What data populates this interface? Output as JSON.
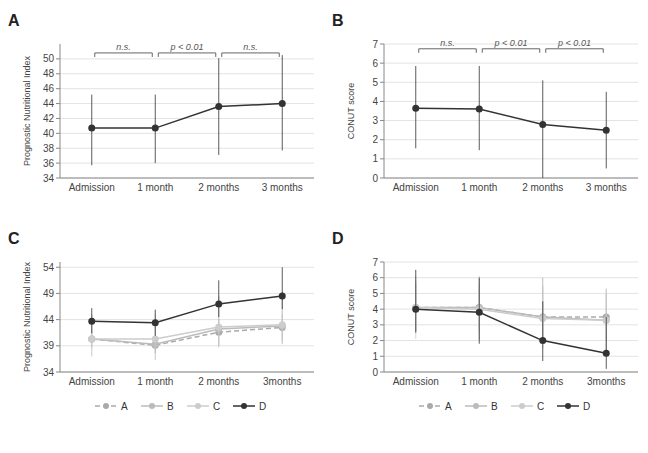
{
  "chart_data": [
    {
      "type": "line",
      "title": "A",
      "categories": [
        "Admission",
        "1 month",
        "2 months",
        "3 months"
      ],
      "ylabel": "Prognostic Nutritional Index",
      "ylim": [
        34,
        52
      ],
      "yticks": [
        34,
        36,
        38,
        40,
        42,
        44,
        46,
        48,
        50
      ],
      "grid": true,
      "series": [
        {
          "color": "#333333",
          "marker": "circle",
          "line_style": "solid",
          "values": [
            40.7,
            40.7,
            43.6,
            44.0
          ],
          "err_low": [
            5.0,
            4.7,
            6.5,
            6.3
          ],
          "err_high": [
            4.5,
            4.5,
            6.5,
            6.5
          ]
        }
      ],
      "annotations": [
        {
          "x1": 0,
          "x2": 1,
          "y": 50.8,
          "label": "n.s."
        },
        {
          "x1": 1,
          "x2": 2,
          "y": 50.8,
          "label": "p < 0.01"
        },
        {
          "x1": 2,
          "x2": 3,
          "y": 50.8,
          "label": "n.s."
        }
      ]
    },
    {
      "type": "line",
      "title": "B",
      "categories": [
        "Admission",
        "1 month",
        "2 months",
        "3 months"
      ],
      "ylabel": "CONUT score",
      "ylim": [
        0,
        7
      ],
      "yticks": [
        0,
        1,
        2,
        3,
        4,
        5,
        6,
        7
      ],
      "grid": true,
      "series": [
        {
          "color": "#333333",
          "marker": "circle",
          "line_style": "solid",
          "values": [
            3.65,
            3.6,
            2.8,
            2.5
          ],
          "err_low": [
            2.1,
            2.15,
            2.8,
            2.0
          ],
          "err_high": [
            2.2,
            2.25,
            2.3,
            2.0
          ]
        }
      ],
      "annotations": [
        {
          "x1": 0,
          "x2": 1,
          "y": 6.75,
          "label": "n.s."
        },
        {
          "x1": 1,
          "x2": 2,
          "y": 6.75,
          "label": "p < 0.01"
        },
        {
          "x1": 2,
          "x2": 3,
          "y": 6.75,
          "label": "p < 0.01"
        }
      ]
    },
    {
      "type": "line",
      "title": "C",
      "categories": [
        "Admission",
        "1 month",
        "2 months",
        "3months"
      ],
      "ylabel": "Prognostic Nutritional Index",
      "ylim": [
        34,
        55
      ],
      "yticks": [
        34,
        39,
        44,
        49,
        54
      ],
      "grid": true,
      "legend": "bottom",
      "series": [
        {
          "name": "A",
          "color": "#aaaaaa",
          "marker": "circle",
          "line_style": "dashed",
          "values": [
            40.3,
            39.1,
            41.6,
            42.5
          ],
          "err_low": [
            1.5,
            1.5,
            2.5,
            2.5
          ],
          "err_high": [
            1.5,
            1.5,
            2.5,
            2.5
          ]
        },
        {
          "name": "B",
          "color": "#bbbbbb",
          "marker": "circle",
          "line_style": "solid",
          "values": [
            40.3,
            39.3,
            42.2,
            42.8
          ],
          "err_low": [
            3.3,
            3.0,
            3.5,
            3.5
          ],
          "err_high": [
            4.5,
            4.5,
            6.2,
            6.2
          ]
        },
        {
          "name": "C",
          "color": "#cccccc",
          "marker": "circle",
          "line_style": "solid",
          "values": [
            40.3,
            40.3,
            42.6,
            43.0
          ],
          "err_low": [
            1.8,
            1.8,
            3.2,
            3.2
          ],
          "err_high": [
            4.8,
            4.8,
            6.0,
            6.5
          ]
        },
        {
          "name": "D",
          "color": "#333333",
          "marker": "circle",
          "line_style": "solid",
          "values": [
            43.7,
            43.4,
            47.0,
            48.5
          ],
          "err_low": [
            2.3,
            2.5,
            2.5,
            2.5
          ],
          "err_high": [
            2.5,
            2.5,
            4.5,
            5.5
          ]
        }
      ]
    },
    {
      "type": "line",
      "title": "D",
      "categories": [
        "Admission",
        "1 month",
        "2 months",
        "3months"
      ],
      "ylabel": "CONUT score",
      "ylim": [
        0,
        7
      ],
      "yticks": [
        0,
        1,
        2,
        3,
        4,
        5,
        6,
        7
      ],
      "grid": true,
      "legend": "bottom",
      "series": [
        {
          "name": "A",
          "color": "#aaaaaa",
          "marker": "circle",
          "line_style": "dashed",
          "values": [
            4.1,
            4.1,
            3.5,
            3.5
          ],
          "err_low": [
            1.5,
            1.5,
            1.5,
            1.5
          ],
          "err_high": [
            1.5,
            1.5,
            2.5,
            1.5
          ]
        },
        {
          "name": "B",
          "color": "#bbbbbb",
          "marker": "circle",
          "line_style": "solid",
          "values": [
            4.1,
            4.1,
            3.5,
            3.3
          ],
          "err_low": [
            1.5,
            2.0,
            2.0,
            2.0
          ],
          "err_high": [
            1.7,
            2.0,
            2.0,
            2.0
          ]
        },
        {
          "name": "C",
          "color": "#cccccc",
          "marker": "circle",
          "line_style": "solid",
          "values": [
            4.1,
            4.0,
            3.4,
            3.3
          ],
          "err_low": [
            2.0,
            2.0,
            1.5,
            2.0
          ],
          "err_high": [
            2.0,
            2.0,
            1.5,
            2.0
          ]
        },
        {
          "name": "D",
          "color": "#333333",
          "marker": "circle",
          "line_style": "solid",
          "values": [
            4.0,
            3.8,
            2.0,
            1.2
          ],
          "err_low": [
            1.5,
            2.0,
            1.3,
            1.0
          ],
          "err_high": [
            2.5,
            2.2,
            2.5,
            2.3
          ]
        }
      ]
    }
  ]
}
